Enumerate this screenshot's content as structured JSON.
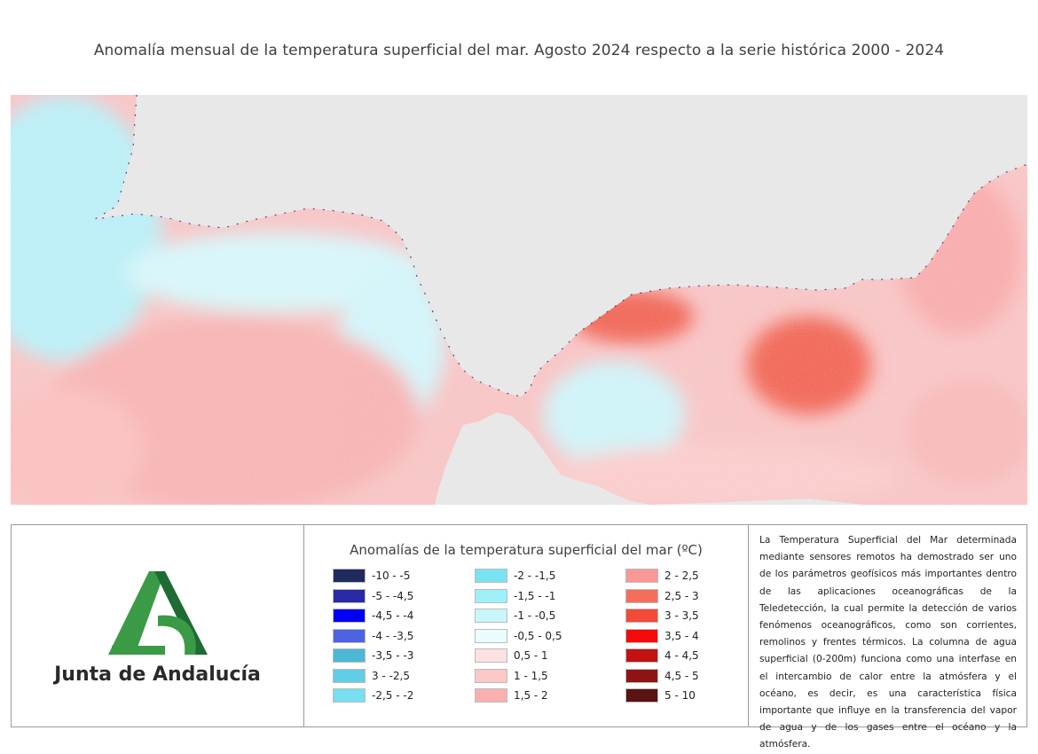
{
  "title": "Anomalía mensual de la temperatura superficial del mar. Agosto 2024 respecto a la serie histórica 2000 - 2024",
  "logo": {
    "text": "Junta de Andalucía",
    "colors": {
      "light_green": "#3a9a46",
      "dark_green": "#1e6b34"
    }
  },
  "legend": {
    "title": "Anomalías de la temperatura superficial del mar (ºC)",
    "columns": [
      [
        {
          "label": "-10 - -5",
          "color": "#1f2a5e"
        },
        {
          "label": "-5 - -4,5",
          "color": "#2929a6"
        },
        {
          "label": "-4,5 - -4",
          "color": "#0000f5"
        },
        {
          "label": "-4 - -3,5",
          "color": "#4d63e0"
        },
        {
          "label": "-3,5 - -3",
          "color": "#4bb8d6"
        },
        {
          "label": "3 - -2,5",
          "color": "#62cde6"
        },
        {
          "label": "-2,5 - -2",
          "color": "#78dff0"
        }
      ],
      [
        {
          "label": "-2 - -1,5",
          "color": "#7ae3f2"
        },
        {
          "label": "-1,5 - -1",
          "color": "#9ff0f8"
        },
        {
          "label": "-1 - -0,5",
          "color": "#c8f7fb"
        },
        {
          "label": "-0,5 - 0,5",
          "color": "#eafcfd"
        },
        {
          "label": "0,5 - 1",
          "color": "#fde1e1"
        },
        {
          "label": "1 - 1,5",
          "color": "#fcc8c8"
        },
        {
          "label": "1,5 - 2",
          "color": "#fbb0b0"
        }
      ],
      [
        {
          "label": "2 - 2,5",
          "color": "#fa9898"
        },
        {
          "label": "2,5 - 3",
          "color": "#f56e5a"
        },
        {
          "label": "3 - 3,5",
          "color": "#f44a38"
        },
        {
          "label": "3,5 - 4",
          "color": "#f50a0a"
        },
        {
          "label": "4 - 4,5",
          "color": "#c21212"
        },
        {
          "label": "4,5 - 5",
          "color": "#8e1414"
        },
        {
          "label": "5 - 10",
          "color": "#5a1212"
        }
      ]
    ]
  },
  "description": "La Temperatura Superficial del Mar determinada mediante sensores remotos ha demostrado ser uno de los parámetros geofísicos más importantes dentro de las aplicaciones oceanográficas de la Teledetección, la cual permite la detección de varios fenómenos oceanográficos, como son corrientes, remolinos y frentes térmicos. La columna de agua superficial (0-200m) funciona como una interfase en el intercambio de calor entre la atmósfera y el océano, es decir, es una característica física importante que influye en la transferencia del vapor de agua y de los gases entre el océano y la atmósfera.",
  "map": {
    "land_color": "#e8e8e8"
  }
}
